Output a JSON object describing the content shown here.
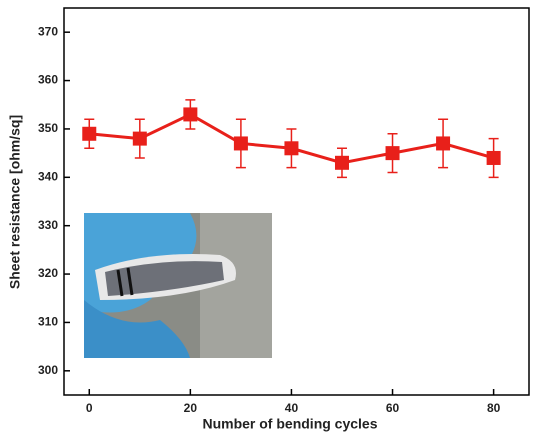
{
  "chart_data": {
    "type": "line",
    "x_label": "Number of bending cycles",
    "y_label": "Sheet resistance [ohm/sq]",
    "x": [
      0,
      10,
      20,
      30,
      40,
      50,
      60,
      70,
      80
    ],
    "series": [
      {
        "color": "#e8201a",
        "values": [
          349,
          348,
          353,
          347,
          346,
          343,
          345,
          347,
          344
        ],
        "errors": [
          3,
          4,
          3,
          5,
          4,
          3,
          4,
          5,
          4
        ]
      }
    ],
    "xlim": [
      -5,
      87
    ],
    "ylim": [
      295,
      375
    ],
    "xticks": [
      0,
      20,
      40,
      60,
      80
    ],
    "yticks": [
      300,
      310,
      320,
      330,
      340,
      350,
      360,
      370
    ]
  }
}
